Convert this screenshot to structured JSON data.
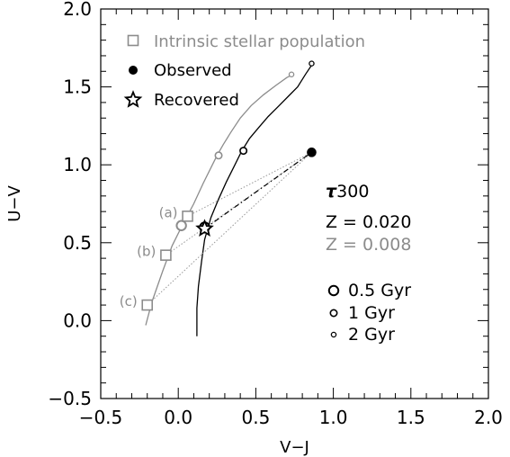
{
  "chart_data": {
    "type": "line",
    "xlabel": "V−J",
    "ylabel": "U−V",
    "xlim": [
      -0.5,
      2.0
    ],
    "ylim": [
      -0.5,
      2.0
    ],
    "xticks": [
      -0.5,
      0.0,
      0.5,
      1.0,
      1.5,
      2.0
    ],
    "yticks": [
      -0.5,
      0.0,
      0.5,
      1.0,
      1.5,
      2.0
    ],
    "xtick_labels": [
      "−0.5",
      "0.0",
      "0.5",
      "1.0",
      "1.5",
      "2.0"
    ],
    "ytick_labels": [
      "−0.5",
      "0.0",
      "0.5",
      "1.0",
      "1.5",
      "2.0"
    ],
    "grid": false,
    "legend_placement": "top-left",
    "legend": [
      {
        "label": "Intrinsic stellar population",
        "marker": "open-square",
        "color": "#8c8c8c"
      },
      {
        "label": "Observed",
        "marker": "filled-circle",
        "color": "#000000"
      },
      {
        "label": "Recovered",
        "marker": "open-star",
        "color": "#000000"
      }
    ],
    "series": [
      {
        "color": "#8c8c8c",
        "x": [
          -0.21,
          -0.17,
          -0.1,
          -0.04,
          0.03,
          0.1,
          0.16,
          0.21,
          0.25,
          0.29,
          0.34,
          0.4,
          0.47,
          0.55,
          0.63,
          0.7,
          0.74
        ],
        "y": [
          -0.03,
          0.12,
          0.32,
          0.48,
          0.62,
          0.75,
          0.88,
          0.98,
          1.06,
          1.13,
          1.21,
          1.3,
          1.38,
          1.45,
          1.51,
          1.56,
          1.58
        ]
      },
      {
        "color": "#000000",
        "x": [
          0.12,
          0.12,
          0.13,
          0.15,
          0.17,
          0.21,
          0.26,
          0.31,
          0.36,
          0.41,
          0.46,
          0.52,
          0.58,
          0.65,
          0.71,
          0.77,
          0.82,
          0.86
        ],
        "y": [
          -0.1,
          0.08,
          0.22,
          0.38,
          0.52,
          0.66,
          0.78,
          0.89,
          0.99,
          1.09,
          1.17,
          1.24,
          1.31,
          1.38,
          1.44,
          1.5,
          1.58,
          1.64
        ]
      }
    ],
    "age_markers": [
      {
        "series": 0,
        "age": "0.5 Gyr",
        "x": 0.02,
        "y": 0.61
      },
      {
        "series": 0,
        "age": "1 Gyr",
        "x": 0.26,
        "y": 1.06
      },
      {
        "series": 0,
        "age": "2 Gyr",
        "x": 0.73,
        "y": 1.58
      },
      {
        "series": 1,
        "age": "0.5 Gyr",
        "x": 0.17,
        "y": 0.6
      },
      {
        "series": 1,
        "age": "1 Gyr",
        "x": 0.42,
        "y": 1.09
      },
      {
        "series": 1,
        "age": "2 Gyr",
        "x": 0.86,
        "y": 1.65
      }
    ],
    "intrinsic_points": [
      {
        "label": "(a)",
        "x": 0.06,
        "y": 0.67
      },
      {
        "label": "(b)",
        "x": -0.08,
        "y": 0.42
      },
      {
        "label": "(c)",
        "x": -0.2,
        "y": 0.1
      }
    ],
    "observed_point": {
      "x": 0.86,
      "y": 1.08
    },
    "recovered_point": {
      "x": 0.17,
      "y": 0.59
    },
    "annotations": {
      "tau": "300",
      "z_solar": "Z = 0.020",
      "z_sub": "Z = 0.008",
      "size_key": [
        "0.5 Gyr",
        "1 Gyr",
        "2 Gyr"
      ]
    },
    "colors": {
      "model_low_z": "#8c8c8c",
      "model_solar": "#000000",
      "dotted": "#999999"
    }
  }
}
